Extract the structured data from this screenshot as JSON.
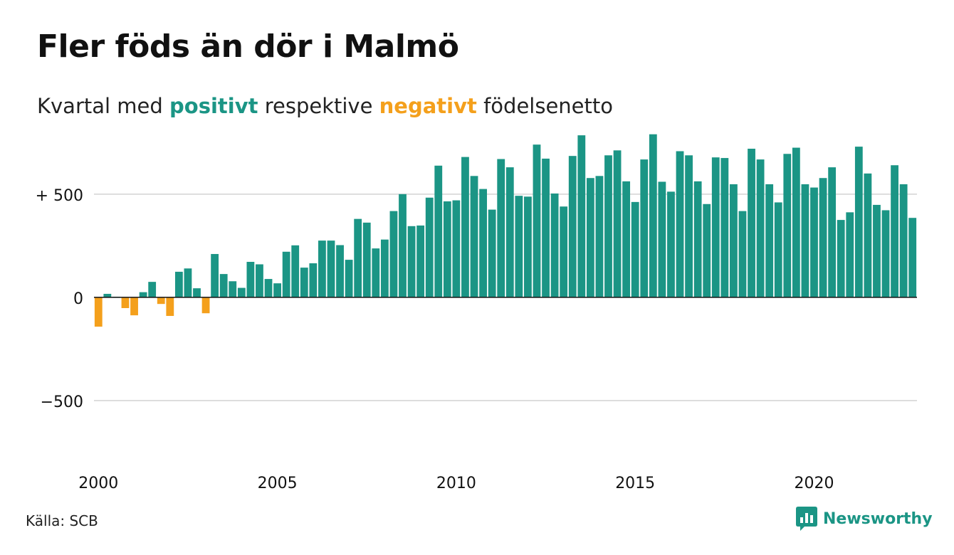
{
  "header": {
    "title": "Fler föds än dör i Malmö",
    "subtitle_pre": "Kvartal med",
    "subtitle_pos": "positivt",
    "subtitle_mid": "respektive",
    "subtitle_neg": "negativt",
    "subtitle_post": "födelsenetto"
  },
  "colors": {
    "positive": "#1b9585",
    "negative": "#f4a01c",
    "grid": "#dddddd",
    "zero_line": "#111111",
    "text": "#111111"
  },
  "footer": {
    "source": "Källa: SCB",
    "brand": "Newsworthy",
    "brand_icon": "bar-chart-speech-icon"
  },
  "chart_data": {
    "type": "bar",
    "x_start": "2000 Q1",
    "frequency": "quarterly",
    "y_tick_labels": [
      "+ 500",
      "0",
      "−500"
    ],
    "y_ticks": [
      500,
      0,
      -500
    ],
    "ylim": [
      -800,
      820
    ],
    "x_tick_labels": [
      "2000",
      "2005",
      "2010",
      "2015",
      "2020"
    ],
    "x_ticks": [
      "2000",
      "2005",
      "2010",
      "2015",
      "2020"
    ],
    "grid": true,
    "values": [
      -142,
      17,
      3,
      -52,
      -87,
      25,
      75,
      -32,
      -90,
      124,
      140,
      44,
      -77,
      210,
      113,
      78,
      46,
      172,
      160,
      89,
      68,
      221,
      252,
      144,
      165,
      275,
      275,
      253,
      182,
      380,
      362,
      237,
      280,
      418,
      500,
      345,
      348,
      483,
      638,
      465,
      470,
      680,
      588,
      525,
      425,
      670,
      630,
      492,
      488,
      740,
      672,
      503,
      440,
      685,
      785,
      578,
      588,
      688,
      712,
      562,
      462,
      668,
      790,
      560,
      512,
      708,
      688,
      562,
      452,
      678,
      675,
      548,
      418,
      720,
      668,
      548,
      460,
      695,
      725,
      548,
      532,
      578,
      630,
      375,
      412,
      730,
      600,
      448,
      422,
      640,
      548,
      385
    ]
  }
}
